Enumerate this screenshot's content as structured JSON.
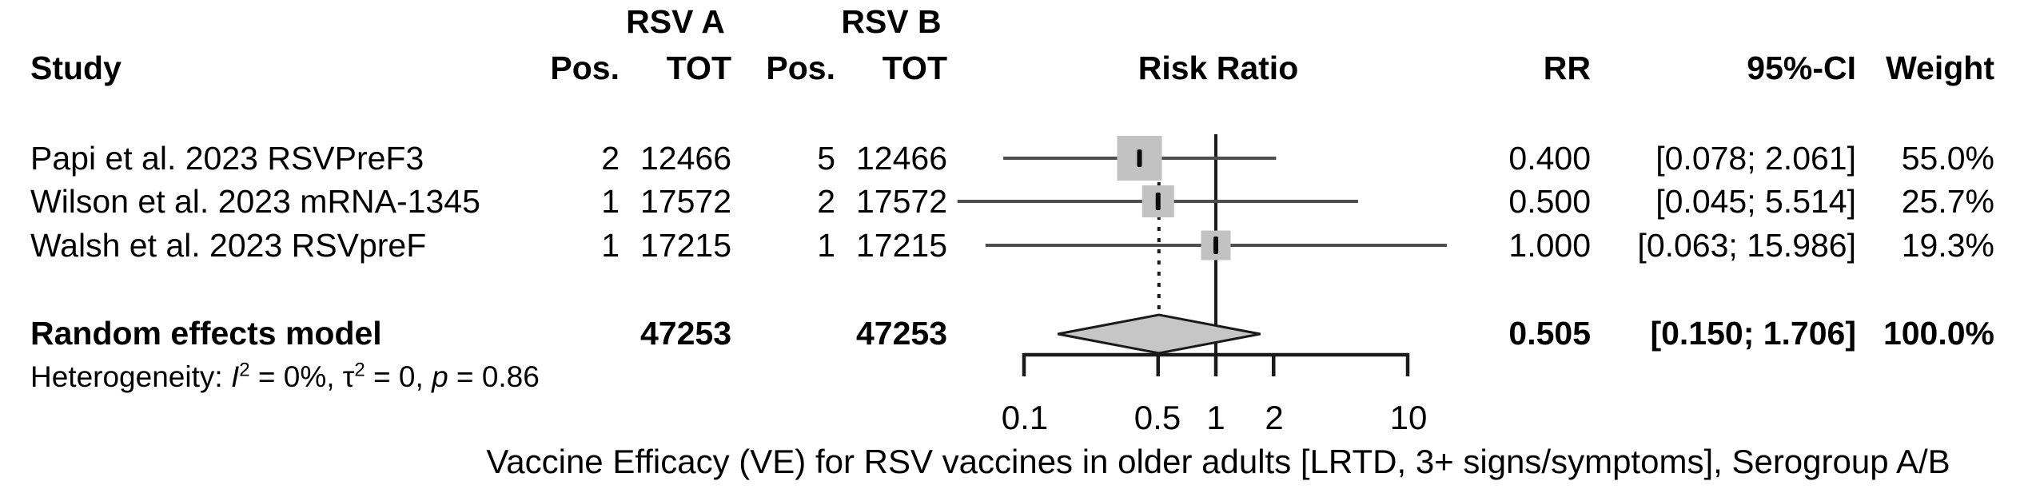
{
  "header": {
    "group_a": "RSV A",
    "group_b": "RSV B",
    "study": "Study",
    "pos_a": "Pos.",
    "tot_a": "TOT",
    "pos_b": "Pos.",
    "tot_b": "TOT",
    "risk_ratio": "Risk Ratio",
    "rr": "RR",
    "ci": "95%-CI",
    "weight": "Weight"
  },
  "chart_data": {
    "type": "forest",
    "title": "",
    "x_axis": {
      "scale": "log10",
      "ticks": [
        0.1,
        0.5,
        1,
        2,
        10
      ],
      "tick_labels": [
        "0.1",
        "0.5",
        "1",
        "2",
        "10"
      ],
      "axis_range": [
        0.1,
        10
      ],
      "reference_line": 1.0,
      "pooled_dashed_line": 0.505
    },
    "studies": [
      {
        "name": "Papi et al. 2023 RSVPreF3",
        "pos_a": "2",
        "tot_a": "12466",
        "pos_b": "5",
        "tot_b": "12466",
        "rr": 0.4,
        "ci_low": 0.078,
        "ci_high": 2.061,
        "rr_label": "0.400",
        "ci_label": "[0.078; 2.061]",
        "weight_label": "55.0%",
        "weight_value": 0.55
      },
      {
        "name": "Wilson et al. 2023 mRNA-1345",
        "pos_a": "1",
        "tot_a": "17572",
        "pos_b": "2",
        "tot_b": "17572",
        "rr": 0.5,
        "ci_low": 0.045,
        "ci_high": 5.514,
        "rr_label": "0.500",
        "ci_label": "[0.045; 5.514]",
        "weight_label": "25.7%",
        "weight_value": 0.257
      },
      {
        "name": "Walsh et al. 2023 RSVpreF",
        "pos_a": "1",
        "tot_a": "17215",
        "pos_b": "1",
        "tot_b": "17215",
        "rr": 1.0,
        "ci_low": 0.063,
        "ci_high": 15.986,
        "rr_label": "1.000",
        "ci_label": "[0.063; 15.986]",
        "weight_label": "19.3%",
        "weight_value": 0.193
      }
    ],
    "pooled": {
      "name": "Random effects model",
      "tot_a": "47253",
      "tot_b": "47253",
      "rr": 0.505,
      "ci_low": 0.15,
      "ci_high": 1.706,
      "rr_label": "0.505",
      "ci_label": "[0.150; 1.706]",
      "weight_label": "100.0%"
    },
    "heterogeneity": {
      "prefix": "Heterogeneity: ",
      "i_sym": "I",
      "i_sup": "2",
      "seg1": " = 0%, ",
      "tau_sym": "τ",
      "tau_sup": "2",
      "seg2": " = 0, ",
      "p_sym": "p",
      "seg3": " = 0.86"
    },
    "caption": "Vaccine Efficacy (VE) for RSV vaccines in older adults [LRTD, 3+ signs/symptoms], Serogroup A/B"
  },
  "colors": {
    "text": "#000000",
    "ci_line": "#4d4d4d",
    "square_fill": "#c2c2c2",
    "marker": "#0a0a0a",
    "diamond_fill": "#c6c6c6",
    "axis_line": "#1a1a1a"
  }
}
